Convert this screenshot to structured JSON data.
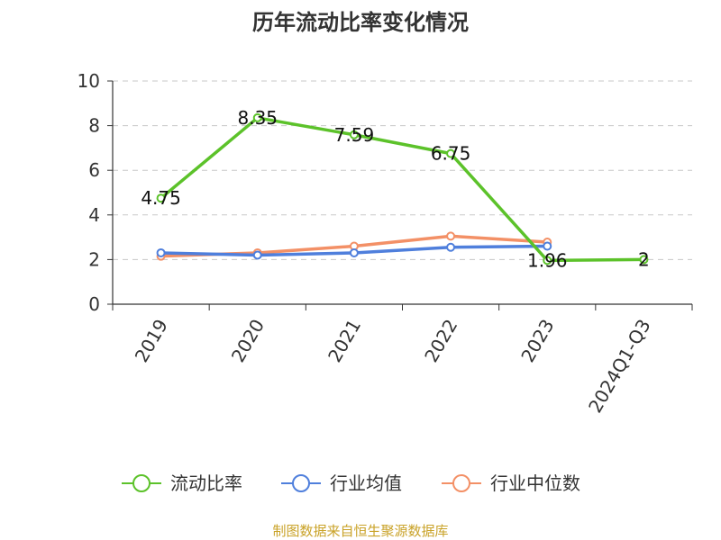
{
  "chart_data": {
    "type": "line",
    "title": "历年流动比率变化情况",
    "xlabel": "",
    "ylabel": "",
    "categories": [
      "2019",
      "2020",
      "2021",
      "2022",
      "2023",
      "2024Q1-Q3"
    ],
    "ylim": [
      0,
      10
    ],
    "yticks": [
      0,
      2,
      4,
      6,
      8,
      10
    ],
    "grid": true,
    "legend_position": "bottom",
    "series": [
      {
        "name": "流动比率",
        "color": "#5cc22a",
        "values": [
          4.75,
          8.35,
          7.59,
          6.75,
          1.96,
          2
        ],
        "labels": [
          "4.75",
          "8.35",
          "7.59",
          "6.75",
          "1.96",
          "2"
        ]
      },
      {
        "name": "行业均值",
        "color": "#4f7fdc",
        "values": [
          2.3,
          2.2,
          2.3,
          2.55,
          2.6,
          null
        ]
      },
      {
        "name": "行业中位数",
        "color": "#f39066",
        "values": [
          2.15,
          2.3,
          2.6,
          3.05,
          2.78,
          null
        ]
      }
    ]
  },
  "source_text": "制图数据来自恒生聚源数据库",
  "source_color": "#c9a227"
}
